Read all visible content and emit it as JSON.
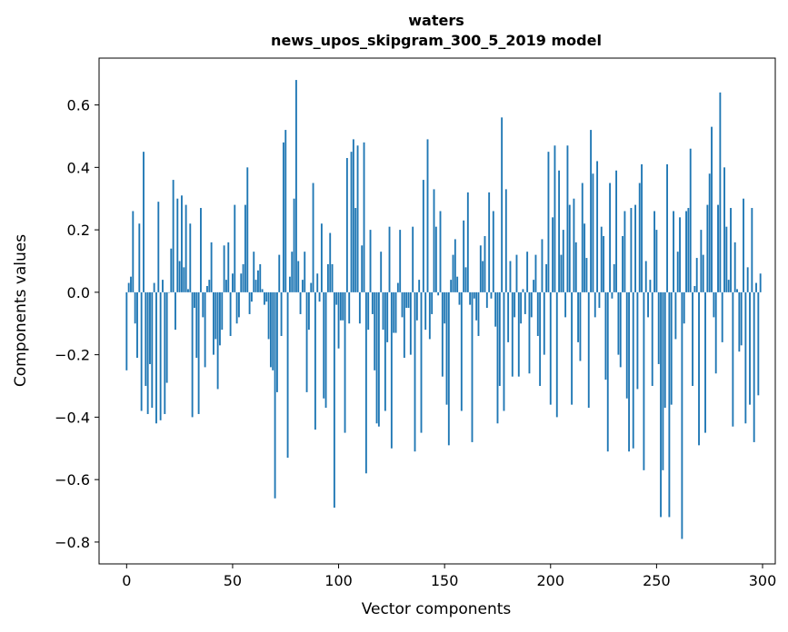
{
  "chart_data": {
    "type": "bar",
    "title": "waters",
    "subtitle": "news_upos_skipgram_300_5_2019 model",
    "xlabel": "Vector components",
    "ylabel": "Components values",
    "xlim": [
      -13,
      306
    ],
    "ylim": [
      -0.87,
      0.75
    ],
    "xticks": [
      0,
      50,
      100,
      150,
      200,
      250,
      300
    ],
    "xtick_labels": [
      "0",
      "50",
      "100",
      "150",
      "200",
      "250",
      "300"
    ],
    "yticks": [
      -0.8,
      -0.6,
      -0.4,
      -0.2,
      0.0,
      0.2,
      0.4,
      0.6
    ],
    "ytick_labels": [
      "−0.8",
      "−0.6",
      "−0.4",
      "−0.2",
      "0.0",
      "0.2",
      "0.4",
      "0.6"
    ],
    "bar_color": "#1f77b4",
    "grid": false,
    "x": "indices 0-299",
    "values": [
      -0.25,
      0.03,
      0.05,
      0.26,
      -0.1,
      -0.21,
      0.22,
      -0.38,
      0.45,
      -0.3,
      -0.39,
      -0.23,
      -0.37,
      0.03,
      -0.42,
      0.29,
      -0.41,
      0.04,
      -0.39,
      -0.29,
      0.0,
      0.14,
      0.36,
      -0.12,
      0.3,
      0.1,
      0.31,
      0.08,
      0.28,
      0.01,
      0.22,
      -0.4,
      -0.05,
      -0.21,
      -0.39,
      0.27,
      -0.08,
      -0.24,
      0.02,
      0.04,
      0.16,
      -0.2,
      -0.15,
      -0.31,
      -0.17,
      -0.12,
      0.15,
      0.04,
      0.16,
      -0.14,
      0.06,
      0.28,
      -0.1,
      -0.08,
      0.06,
      0.09,
      0.28,
      0.4,
      -0.07,
      -0.03,
      0.13,
      0.04,
      0.07,
      0.09,
      0.01,
      -0.04,
      -0.03,
      -0.15,
      -0.24,
      -0.25,
      -0.66,
      -0.32,
      0.12,
      -0.14,
      0.48,
      0.52,
      -0.53,
      0.05,
      0.13,
      0.3,
      0.68,
      0.1,
      -0.07,
      0.04,
      0.13,
      -0.32,
      -0.12,
      0.03,
      0.35,
      -0.44,
      0.06,
      -0.03,
      0.22,
      -0.34,
      -0.37,
      0.09,
      0.19,
      0.09,
      -0.69,
      -0.04,
      -0.18,
      -0.09,
      -0.09,
      -0.45,
      0.43,
      -0.1,
      0.45,
      0.49,
      0.27,
      0.47,
      -0.1,
      0.15,
      0.48,
      -0.58,
      -0.12,
      0.2,
      -0.07,
      -0.25,
      -0.42,
      -0.43,
      0.13,
      -0.12,
      -0.38,
      -0.16,
      0.21,
      -0.5,
      -0.13,
      -0.13,
      0.03,
      0.2,
      -0.08,
      -0.21,
      -0.05,
      -0.05,
      -0.2,
      0.21,
      -0.51,
      -0.09,
      0.04,
      -0.45,
      0.36,
      -0.12,
      0.49,
      -0.15,
      -0.07,
      0.33,
      0.21,
      -0.01,
      0.26,
      -0.27,
      -0.1,
      -0.36,
      -0.49,
      0.04,
      0.12,
      0.17,
      0.05,
      -0.04,
      -0.38,
      0.23,
      0.08,
      0.32,
      -0.04,
      -0.48,
      -0.02,
      -0.09,
      -0.14,
      0.15,
      0.1,
      0.18,
      -0.05,
      0.32,
      -0.02,
      0.26,
      -0.11,
      -0.42,
      -0.3,
      0.56,
      -0.38,
      0.33,
      -0.16,
      0.1,
      -0.27,
      -0.08,
      0.12,
      -0.27,
      -0.1,
      0.01,
      -0.07,
      0.13,
      -0.26,
      -0.08,
      0.04,
      0.12,
      -0.14,
      -0.3,
      0.17,
      -0.2,
      0.09,
      0.45,
      -0.36,
      0.24,
      0.47,
      -0.4,
      0.39,
      0.12,
      0.2,
      -0.08,
      0.47,
      0.28,
      -0.36,
      0.3,
      0.16,
      -0.16,
      -0.22,
      0.35,
      0.22,
      0.11,
      -0.37,
      0.52,
      0.38,
      -0.08,
      0.42,
      -0.05,
      0.21,
      0.18,
      -0.28,
      -0.51,
      0.35,
      -0.02,
      0.09,
      0.39,
      -0.2,
      -0.24,
      0.18,
      0.26,
      -0.34,
      -0.51,
      0.27,
      -0.5,
      0.28,
      -0.31,
      0.35,
      0.41,
      -0.57,
      0.1,
      -0.08,
      0.04,
      -0.3,
      0.26,
      0.2,
      -0.23,
      -0.72,
      -0.57,
      -0.37,
      0.41,
      -0.72,
      -0.36,
      0.26,
      -0.15,
      0.13,
      0.24,
      -0.79,
      -0.1,
      0.26,
      0.27,
      0.46,
      -0.3,
      0.02,
      0.11,
      -0.49,
      0.2,
      0.12,
      -0.45,
      0.28,
      0.38,
      0.53,
      -0.08,
      -0.26,
      0.28,
      0.64,
      -0.16,
      0.4,
      0.21,
      0.04,
      0.27,
      -0.43,
      0.16,
      0.01,
      -0.19,
      -0.17,
      0.3,
      -0.42,
      0.08,
      -0.36,
      0.27,
      -0.48,
      0.03,
      -0.33,
      0.06
    ]
  }
}
